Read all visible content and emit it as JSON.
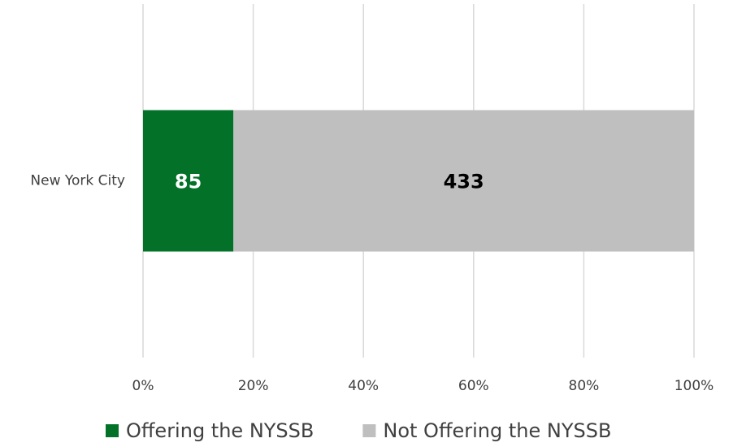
{
  "chart_data": {
    "type": "bar",
    "orientation": "horizontal",
    "stack": "percent",
    "categories": [
      "New York City"
    ],
    "series": [
      {
        "name": "Offering the NYSSB",
        "color": "#037128",
        "label_color": "#ffffff",
        "values": [
          85
        ]
      },
      {
        "name": "Not Offering the NYSSB",
        "color": "#bfbfbf",
        "label_color": "#000000",
        "values": [
          433
        ]
      }
    ],
    "xlim": [
      0,
      100
    ],
    "xticks": [
      {
        "value": 0,
        "label": "0%"
      },
      {
        "value": 20,
        "label": "20%"
      },
      {
        "value": 40,
        "label": "40%"
      },
      {
        "value": 60,
        "label": "60%"
      },
      {
        "value": 80,
        "label": "80%"
      },
      {
        "value": 100,
        "label": "100%"
      }
    ],
    "grid": true,
    "legend": "bottom"
  }
}
